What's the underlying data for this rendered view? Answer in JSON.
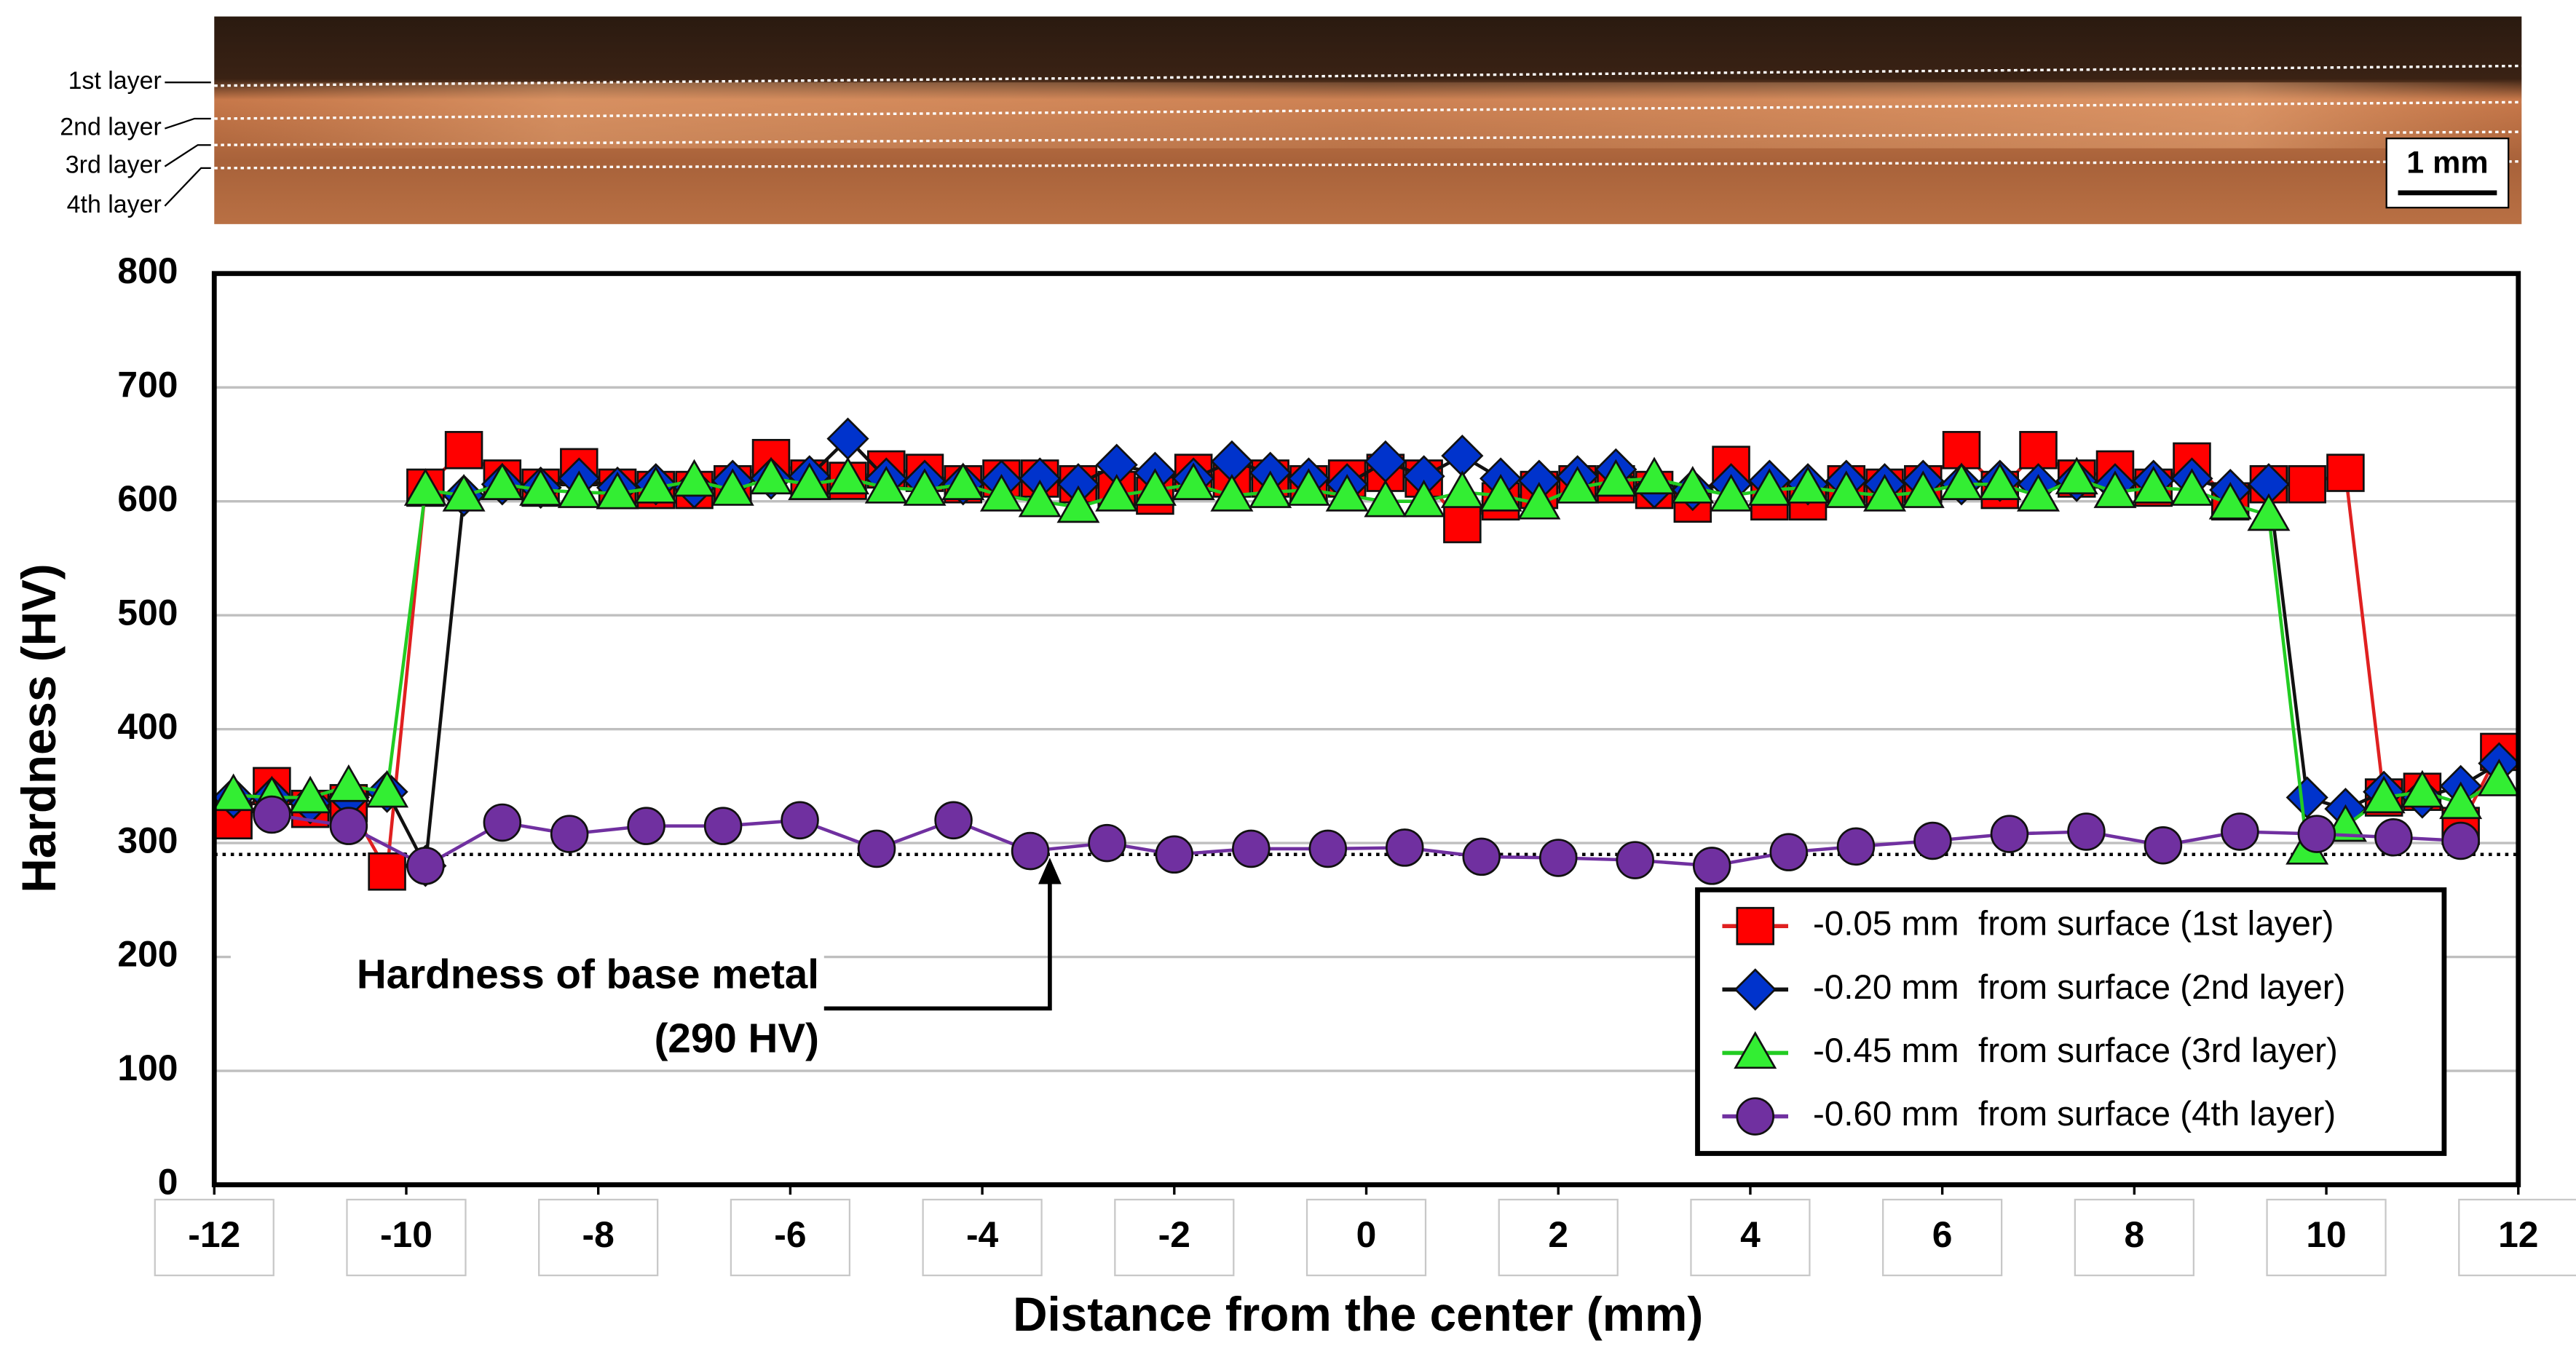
{
  "micrograph": {
    "layer_labels": [
      "1st layer",
      "2nd layer",
      "3rd layer",
      "4th layer"
    ],
    "scale_bar": "1 mm"
  },
  "chart_data": {
    "type": "line",
    "ylabel": "Hardness (HV)",
    "xlabel": "Distance from the center (mm)",
    "xlim": [
      -12,
      12
    ],
    "xticks": [
      -12,
      -10,
      -8,
      -6,
      -4,
      -2,
      0,
      2,
      4,
      6,
      8,
      10,
      12
    ],
    "ylim": [
      0,
      800
    ],
    "yticks": [
      0,
      100,
      200,
      300,
      400,
      500,
      600,
      700,
      800
    ],
    "grid": true,
    "legend": "lower right",
    "annotation": {
      "lines": [
        "Hardness of base metal",
        "(290 HV)"
      ],
      "value": 290
    },
    "x": [
      -11.8,
      -11.4,
      -11.0,
      -10.6,
      -10.2,
      -9.8,
      -9.4,
      -9.0,
      -8.6,
      -8.2,
      -7.8,
      -7.4,
      -7.0,
      -6.6,
      -6.2,
      -5.8,
      -5.4,
      -5.0,
      -4.6,
      -4.2,
      -3.8,
      -3.4,
      -3.0,
      -2.6,
      -2.2,
      -1.8,
      -1.4,
      -1.0,
      -0.6,
      -0.2,
      0.2,
      0.6,
      1.0,
      1.4,
      1.8,
      2.2,
      2.6,
      3.0,
      3.4,
      3.8,
      4.2,
      4.6,
      5.0,
      5.4,
      5.8,
      6.2,
      6.6,
      7.0,
      7.4,
      7.8,
      8.2,
      8.6,
      9.0,
      9.4,
      9.8,
      10.2,
      10.6,
      11.0,
      11.4,
      11.8
    ],
    "series": [
      {
        "name": "-0.05 mm  from surface (1st layer)",
        "color": "#ff0000",
        "line_color": "#e02020",
        "marker": "square",
        "values": [
          320,
          350,
          330,
          335,
          275,
          612,
          645,
          620,
          612,
          630,
          612,
          610,
          610,
          615,
          638,
          620,
          618,
          628,
          625,
          615,
          620,
          620,
          615,
          610,
          605,
          625,
          620,
          620,
          615,
          620,
          625,
          620,
          580,
          600,
          610,
          615,
          615,
          610,
          598,
          632,
          600,
          600,
          615,
          612,
          615,
          645,
          610,
          645,
          620,
          628,
          612,
          635,
          600,
          615,
          615,
          625,
          340,
          345,
          315,
          380
        ]
      },
      {
        "name": "-0.20 mm  from surface (2nd layer)",
        "color": "#0033cc",
        "line_color": "#111111",
        "marker": "diamond",
        "values": [
          340,
          340,
          335,
          340,
          345,
          280,
          605,
          615,
          612,
          620,
          612,
          615,
          612,
          618,
          620,
          622,
          655,
          620,
          618,
          615,
          618,
          620,
          615,
          632,
          625,
          620,
          635,
          625,
          620,
          615,
          635,
          622,
          640,
          620,
          618,
          622,
          628,
          612,
          610,
          615,
          618,
          615,
          618,
          615,
          618,
          615,
          618,
          615,
          618,
          615,
          618,
          620,
          610,
          615,
          340,
          330,
          345,
          340,
          350,
          370
        ]
      },
      {
        "name": "-0.45 mm  from surface (3rd layer)",
        "color": "#33ee33",
        "line_color": "#22cc22",
        "marker": "triangle",
        "values": [
          342,
          340,
          340,
          350,
          345,
          610,
          605,
          615,
          610,
          608,
          607,
          612,
          618,
          610,
          620,
          615,
          620,
          612,
          610,
          615,
          605,
          600,
          595,
          605,
          610,
          615,
          605,
          608,
          610,
          605,
          600,
          600,
          608,
          605,
          598,
          612,
          618,
          620,
          612,
          605,
          610,
          612,
          608,
          605,
          608,
          615,
          615,
          605,
          620,
          608,
          612,
          610,
          598,
          588,
          295,
          315,
          340,
          345,
          335,
          355
        ]
      },
      {
        "name": "-0.60 mm  from surface (4th layer)",
        "color": "#7030a0",
        "line_color": "#7030a0",
        "marker": "circle",
        "x": [
          -11.4,
          -10.6,
          -9.8,
          -9.0,
          -8.3,
          -7.5,
          -6.7,
          -5.9,
          -5.1,
          -4.3,
          -3.5,
          -2.7,
          -2.0,
          -1.2,
          -0.4,
          0.4,
          1.2,
          2.0,
          2.8,
          3.6,
          4.4,
          5.1,
          5.9,
          6.7,
          7.5,
          8.3,
          9.1,
          9.9,
          10.7,
          11.4
        ],
        "values": [
          325,
          315,
          280,
          318,
          308,
          315,
          315,
          320,
          295,
          320,
          293,
          300,
          290,
          295,
          295,
          296,
          288,
          287,
          285,
          280,
          292,
          297,
          302,
          308,
          310,
          298,
          310,
          308,
          305,
          302
        ]
      }
    ]
  }
}
